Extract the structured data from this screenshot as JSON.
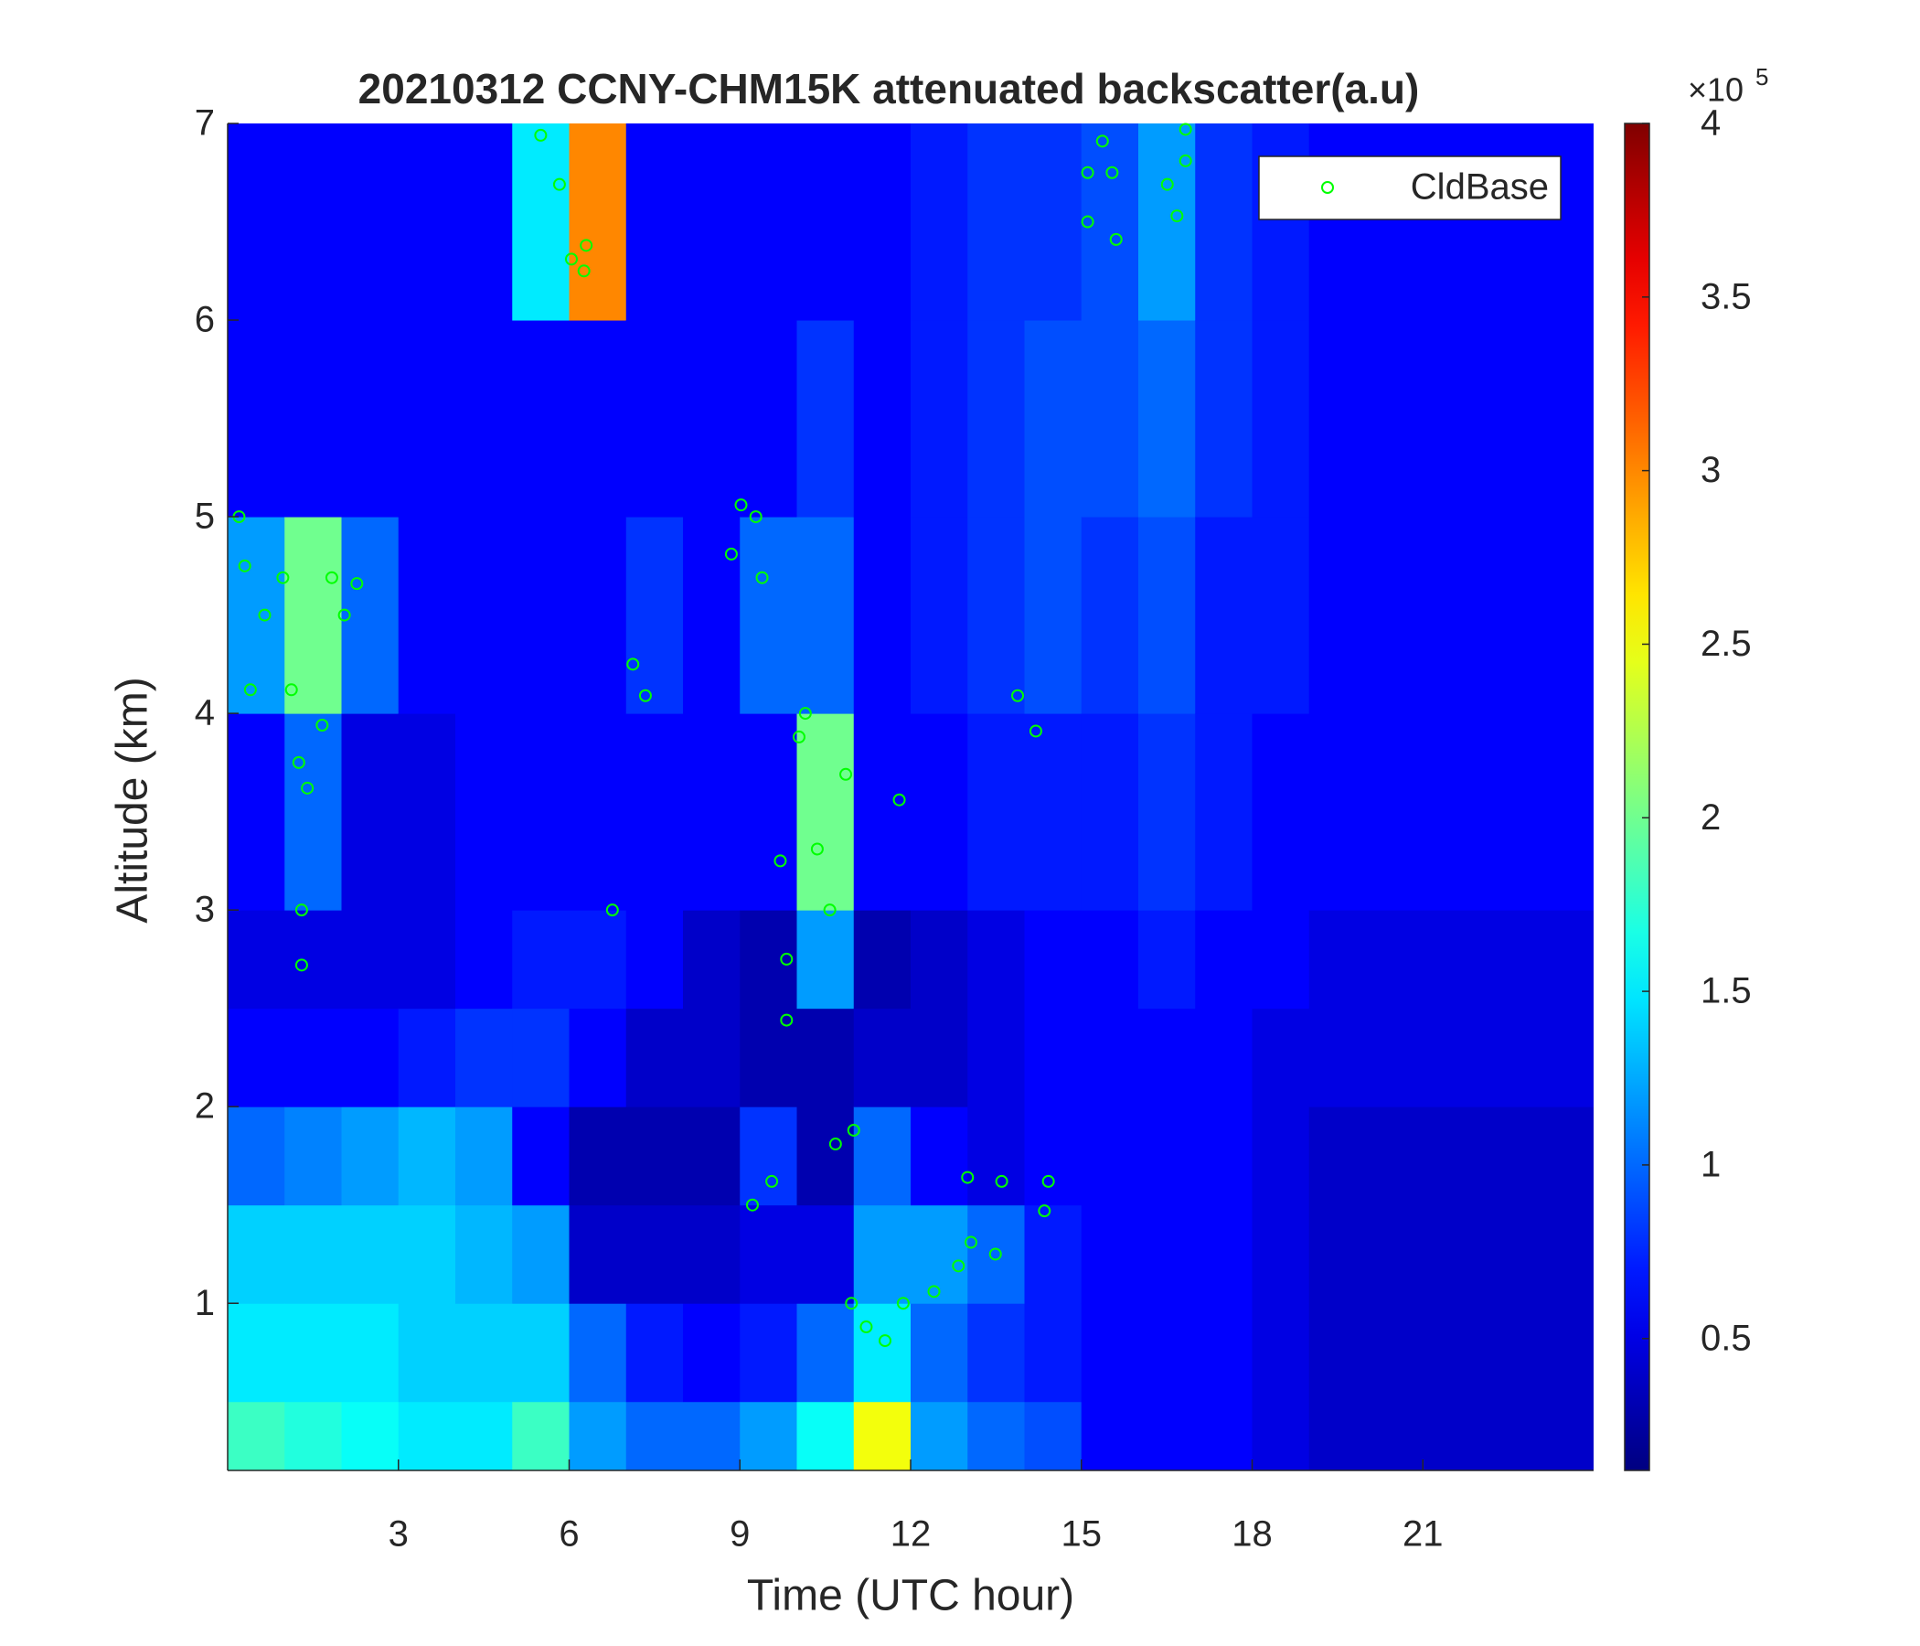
{
  "chart_data": {
    "type": "heatmap",
    "title": "20210312 CCNY-CHM15K attenuated backscatter(a.u)",
    "x_label": "Time (UTC hour)",
    "y_label": "Altitude (km)",
    "xlim": [
      0,
      24
    ],
    "ylim": [
      0.15,
      7
    ],
    "xticks": [
      3,
      6,
      9,
      12,
      15,
      18,
      21
    ],
    "yticks": [
      1,
      2,
      3,
      4,
      5,
      6,
      7
    ],
    "colormap": "jet",
    "x_edges": [
      0,
      1,
      2,
      3,
      4,
      5,
      6,
      7,
      8,
      9,
      10,
      11,
      12,
      13,
      14,
      15,
      16,
      17,
      18,
      19,
      20,
      21,
      22,
      23,
      24
    ],
    "y_edges": [
      0.15,
      0.5,
      1,
      1.5,
      2,
      2.5,
      3,
      4,
      5,
      6,
      7
    ],
    "values": [
      [
        1.8,
        1.5,
        1.4,
        1.0,
        0.6,
        0.5,
        0.6,
        1.2,
        0.6,
        0.6
      ],
      [
        1.7,
        1.5,
        1.4,
        1.1,
        0.6,
        0.5,
        1.0,
        2.0,
        0.6,
        0.6
      ],
      [
        1.6,
        1.5,
        1.4,
        1.2,
        0.6,
        0.5,
        0.5,
        1.0,
        0.6,
        0.6
      ],
      [
        1.5,
        1.4,
        1.4,
        1.3,
        0.7,
        0.5,
        0.5,
        0.6,
        0.6,
        0.6
      ],
      [
        1.5,
        1.4,
        1.3,
        1.2,
        0.8,
        0.6,
        0.6,
        0.6,
        0.6,
        0.6
      ],
      [
        1.8,
        1.4,
        1.2,
        0.6,
        0.8,
        0.7,
        0.6,
        0.6,
        0.6,
        1.5
      ],
      [
        1.2,
        1.0,
        0.4,
        0.3,
        0.6,
        0.7,
        0.6,
        0.6,
        0.6,
        3.0
      ],
      [
        1.0,
        0.7,
        0.4,
        0.3,
        0.4,
        0.6,
        0.6,
        0.8,
        0.6,
        0.6
      ],
      [
        1.0,
        0.6,
        0.4,
        0.3,
        0.4,
        0.4,
        0.6,
        0.6,
        0.6,
        0.6
      ],
      [
        1.2,
        0.7,
        0.5,
        0.8,
        0.3,
        0.3,
        0.6,
        1.0,
        0.6,
        0.6
      ],
      [
        1.6,
        1.0,
        0.5,
        0.3,
        0.3,
        1.2,
        2.0,
        1.0,
        0.8,
        0.6
      ],
      [
        2.5,
        1.5,
        1.2,
        1.0,
        0.4,
        0.3,
        0.6,
        0.6,
        0.6,
        0.6
      ],
      [
        1.2,
        1.0,
        1.2,
        0.6,
        0.4,
        0.4,
        0.6,
        0.7,
        0.7,
        0.7
      ],
      [
        1.0,
        0.8,
        1.0,
        0.5,
        0.5,
        0.5,
        0.7,
        0.8,
        0.8,
        0.8
      ],
      [
        0.9,
        0.7,
        0.7,
        0.6,
        0.6,
        0.6,
        0.7,
        0.9,
        0.9,
        0.8
      ],
      [
        0.6,
        0.6,
        0.6,
        0.6,
        0.6,
        0.6,
        0.7,
        0.8,
        0.9,
        0.9
      ],
      [
        0.6,
        0.6,
        0.6,
        0.6,
        0.6,
        0.7,
        0.8,
        0.9,
        1.0,
        1.2
      ],
      [
        0.6,
        0.6,
        0.6,
        0.6,
        0.6,
        0.6,
        0.7,
        0.7,
        0.8,
        0.8
      ],
      [
        0.5,
        0.5,
        0.5,
        0.5,
        0.5,
        0.6,
        0.6,
        0.7,
        0.7,
        0.7
      ],
      [
        0.4,
        0.4,
        0.4,
        0.4,
        0.5,
        0.5,
        0.6,
        0.6,
        0.6,
        0.6
      ],
      [
        0.4,
        0.4,
        0.4,
        0.4,
        0.5,
        0.5,
        0.6,
        0.6,
        0.6,
        0.6
      ],
      [
        0.4,
        0.4,
        0.4,
        0.4,
        0.5,
        0.5,
        0.6,
        0.6,
        0.6,
        0.6
      ],
      [
        0.4,
        0.4,
        0.4,
        0.4,
        0.5,
        0.5,
        0.6,
        0.6,
        0.6,
        0.6
      ],
      [
        0.4,
        0.4,
        0.4,
        0.4,
        0.5,
        0.5,
        0.6,
        0.6,
        0.6,
        0.6
      ]
    ],
    "colorbar": {
      "clim": [
        0.12,
        4
      ],
      "ticks": [
        0.5,
        1,
        1.5,
        2,
        2.5,
        3,
        3.5,
        4
      ],
      "multiplier_base": "×10",
      "multiplier_exponent": "5"
    },
    "overlay": {
      "type": "scatter",
      "name": "CldBase",
      "color": "#00ff00",
      "x": [
        0.2,
        0.3,
        0.4,
        0.65,
        0.97,
        1.12,
        1.25,
        1.4,
        1.3,
        1.3,
        1.83,
        2.05,
        2.27,
        1.66,
        5.5,
        5.83,
        6.04,
        6.3,
        6.26,
        7.12,
        7.34,
        6.76,
        8.85,
        9.02,
        9.28,
        9.39,
        9.22,
        9.56,
        9.71,
        9.82,
        9.82,
        10.04,
        10.15,
        10.36,
        10.58,
        10.86,
        10.68,
        11.0,
        10.96,
        11.22,
        11.55,
        11.87,
        11.8,
        12.41,
        12.84,
        13.06,
        13.0,
        13.49,
        13.6,
        13.88,
        14.2,
        14.42,
        14.35,
        15.11,
        15.37,
        15.54,
        15.61,
        15.11,
        16.51,
        16.68,
        16.83,
        16.83
      ],
      "y": [
        5.0,
        4.75,
        4.12,
        4.5,
        4.69,
        4.12,
        3.75,
        3.62,
        3.0,
        2.72,
        4.69,
        4.5,
        4.66,
        3.94,
        6.94,
        6.69,
        6.31,
        6.38,
        6.25,
        4.25,
        4.09,
        3.0,
        4.81,
        5.06,
        5.0,
        4.69,
        1.5,
        1.62,
        3.25,
        2.75,
        2.44,
        3.88,
        4.0,
        3.31,
        3.0,
        3.69,
        1.81,
        1.88,
        1.0,
        0.88,
        0.81,
        1.0,
        3.56,
        1.06,
        1.19,
        1.31,
        1.64,
        1.25,
        1.62,
        4.09,
        3.91,
        1.62,
        1.47,
        6.75,
        6.91,
        6.75,
        6.41,
        6.5,
        6.69,
        6.53,
        6.97,
        6.81
      ]
    },
    "legend": "upper right"
  }
}
